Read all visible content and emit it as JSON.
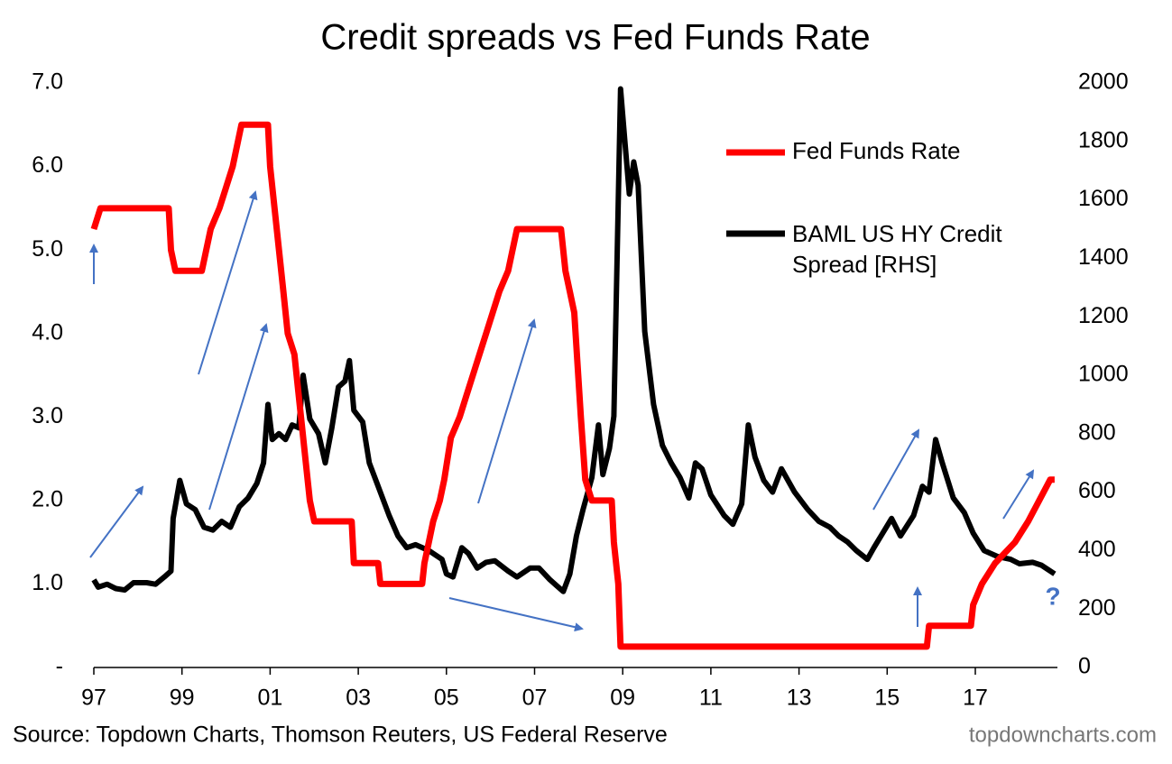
{
  "chart_data": {
    "type": "line",
    "title": "Credit spreads vs Fed Funds Rate",
    "source": "Source: Topdown Charts, Thomson Reuters, US Federal Reserve",
    "watermark": "topdowncharts.com",
    "annotation": "?",
    "xlim": [
      1997,
      2019
    ],
    "xticks": [
      {
        "value": 1997,
        "label": "97"
      },
      {
        "value": 1999,
        "label": "99"
      },
      {
        "value": 2001,
        "label": "01"
      },
      {
        "value": 2003,
        "label": "03"
      },
      {
        "value": 2005,
        "label": "05"
      },
      {
        "value": 2007,
        "label": "07"
      },
      {
        "value": 2009,
        "label": "09"
      },
      {
        "value": 2011,
        "label": "11"
      },
      {
        "value": 2013,
        "label": "13"
      },
      {
        "value": 2015,
        "label": "15"
      },
      {
        "value": 2017,
        "label": "17"
      }
    ],
    "ylim": [
      0,
      7
    ],
    "yticks": [
      {
        "value": 0,
        "label": "-"
      },
      {
        "value": 1,
        "label": "1.0"
      },
      {
        "value": 2,
        "label": "2.0"
      },
      {
        "value": 3,
        "label": "3.0"
      },
      {
        "value": 4,
        "label": "4.0"
      },
      {
        "value": 5,
        "label": "5.0"
      },
      {
        "value": 6,
        "label": "6.0"
      },
      {
        "value": 7,
        "label": "7.0"
      }
    ],
    "y2lim": [
      0,
      2000
    ],
    "y2ticks": [
      0,
      200,
      400,
      600,
      800,
      1000,
      1200,
      1400,
      1600,
      1800,
      2000
    ],
    "series": [
      {
        "name": "Fed Funds Rate",
        "color": "#ff0000",
        "x": [
          1997.0,
          1997.15,
          1998.7,
          1998.75,
          1998.85,
          1999.45,
          1999.55,
          1999.65,
          1999.85,
          2000.0,
          2000.15,
          2000.35,
          2000.95,
          2001.0,
          2001.1,
          2001.2,
          2001.3,
          2001.4,
          2001.55,
          2001.7,
          2001.8,
          2001.9,
          2002.0,
          2002.85,
          2002.9,
          2003.45,
          2003.5,
          2004.45,
          2004.5,
          2004.6,
          2004.7,
          2004.85,
          2004.95,
          2005.1,
          2005.3,
          2005.45,
          2005.6,
          2005.75,
          2005.9,
          2006.05,
          2006.2,
          2006.4,
          2006.5,
          2006.6,
          2007.6,
          2007.7,
          2007.8,
          2007.9,
          2008.05,
          2008.15,
          2008.3,
          2008.75,
          2008.8,
          2008.9,
          2008.95,
          2015.9,
          2015.95,
          2016.9,
          2016.95,
          2017.15,
          2017.45,
          2017.9,
          2018.2,
          2018.45,
          2018.7,
          2018.8
        ],
        "values": [
          5.25,
          5.5,
          5.5,
          5.0,
          4.75,
          4.75,
          5.0,
          5.25,
          5.5,
          5.75,
          6.0,
          6.5,
          6.5,
          6.0,
          5.5,
          5.0,
          4.5,
          4.0,
          3.75,
          3.0,
          2.5,
          2.0,
          1.75,
          1.75,
          1.25,
          1.25,
          1.0,
          1.0,
          1.25,
          1.5,
          1.75,
          2.0,
          2.25,
          2.75,
          3.0,
          3.25,
          3.5,
          3.75,
          4.0,
          4.25,
          4.5,
          4.75,
          5.0,
          5.25,
          5.25,
          4.75,
          4.5,
          4.25,
          3.0,
          2.25,
          2.0,
          2.0,
          1.5,
          1.0,
          0.25,
          0.25,
          0.5,
          0.5,
          0.75,
          1.0,
          1.25,
          1.5,
          1.75,
          2.0,
          2.25,
          2.25
        ]
      },
      {
        "name": "BAML US HY Credit Spread [RHS]",
        "color": "#000000",
        "axis": "y2",
        "x": [
          1997.0,
          1997.1,
          1997.3,
          1997.5,
          1997.7,
          1997.9,
          1998.2,
          1998.4,
          1998.6,
          1998.75,
          1998.8,
          1998.95,
          1999.1,
          1999.3,
          1999.5,
          1999.7,
          1999.9,
          2000.1,
          2000.3,
          2000.5,
          2000.7,
          2000.85,
          2000.95,
          2001.05,
          2001.2,
          2001.35,
          2001.5,
          2001.65,
          2001.75,
          2001.9,
          2002.1,
          2002.25,
          2002.4,
          2002.55,
          2002.7,
          2002.8,
          2002.9,
          2003.1,
          2003.25,
          2003.45,
          2003.7,
          2003.9,
          2004.1,
          2004.3,
          2004.6,
          2004.9,
          2005.0,
          2005.15,
          2005.35,
          2005.5,
          2005.7,
          2005.9,
          2006.1,
          2006.4,
          2006.6,
          2006.9,
          2007.1,
          2007.35,
          2007.5,
          2007.65,
          2007.8,
          2007.95,
          2008.1,
          2008.3,
          2008.45,
          2008.55,
          2008.7,
          2008.8,
          2008.95,
          2009.05,
          2009.15,
          2009.25,
          2009.35,
          2009.5,
          2009.7,
          2009.9,
          2010.1,
          2010.3,
          2010.5,
          2010.65,
          2010.8,
          2011.0,
          2011.3,
          2011.5,
          2011.7,
          2011.85,
          2012.0,
          2012.2,
          2012.4,
          2012.6,
          2012.9,
          2013.2,
          2013.45,
          2013.7,
          2013.9,
          2014.1,
          2014.3,
          2014.55,
          2014.7,
          2014.9,
          2015.1,
          2015.3,
          2015.6,
          2015.8,
          2015.95,
          2016.1,
          2016.25,
          2016.5,
          2016.75,
          2016.95,
          2017.2,
          2017.5,
          2017.8,
          2018.0,
          2018.3,
          2018.5,
          2018.8
        ],
        "values": [
          300,
          275,
          285,
          270,
          265,
          290,
          290,
          285,
          310,
          330,
          510,
          640,
          560,
          540,
          480,
          470,
          500,
          480,
          550,
          580,
          630,
          700,
          900,
          780,
          800,
          780,
          830,
          820,
          1000,
          850,
          800,
          700,
          820,
          960,
          980,
          1050,
          880,
          840,
          700,
          620,
          520,
          450,
          410,
          420,
          400,
          370,
          320,
          310,
          410,
          390,
          340,
          360,
          365,
          330,
          310,
          340,
          340,
          300,
          280,
          260,
          320,
          450,
          540,
          650,
          830,
          660,
          750,
          860,
          1980,
          1800,
          1620,
          1730,
          1650,
          1150,
          900,
          760,
          700,
          650,
          580,
          700,
          680,
          590,
          520,
          490,
          560,
          830,
          720,
          640,
          600,
          680,
          600,
          540,
          500,
          480,
          450,
          430,
          400,
          370,
          410,
          460,
          510,
          450,
          520,
          620,
          600,
          780,
          700,
          580,
          530,
          460,
          400,
          380,
          370,
          355,
          360,
          350,
          320
        ]
      }
    ]
  }
}
